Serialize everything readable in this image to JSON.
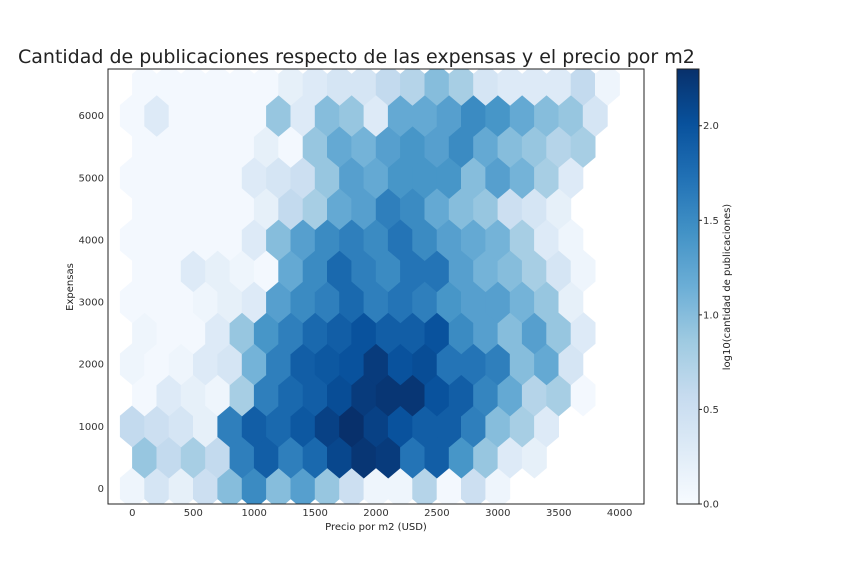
{
  "chart_data": {
    "type": "heatmap",
    "subtype": "hexbin",
    "title": "Cantidad de publicaciones respecto de las expensas y el precio por m2",
    "xlabel": "Precio por m2 (USD)",
    "ylabel": "Expensas",
    "xlim": [
      -200,
      4200
    ],
    "ylim": [
      -250,
      6750
    ],
    "x_ticks": [
      "0",
      "500",
      "1000",
      "1500",
      "2000",
      "2500",
      "3000",
      "3500",
      "4000"
    ],
    "y_ticks": [
      "0",
      "1000",
      "2000",
      "3000",
      "4000",
      "5000",
      "6000"
    ],
    "grid": false,
    "colormap": "Blues",
    "colorbar": {
      "label": "log10(cantidad de publicaciones)",
      "range": [
        0,
        2.3
      ],
      "ticks": [
        "0.0",
        "0.5",
        "1.0",
        "1.5",
        "2.0"
      ]
    },
    "hex_grid": {
      "x_start": 0,
      "x_step": 200,
      "x_cols": 21,
      "y_start": 0,
      "y_step": 500,
      "y_rows": 14,
      "odd_row_x_offset": 100
    },
    "rows": [
      [
        0.1,
        0.4,
        0.2,
        0.5,
        1.0,
        1.5,
        1.0,
        1.3,
        0.9,
        0.5,
        0.1,
        0.1,
        0.7,
        0.05,
        0.5,
        0.1
      ],
      [
        0.9,
        0.6,
        0.8,
        0.6,
        1.6,
        1.9,
        1.6,
        1.8,
        2.1,
        2.25,
        2.2,
        1.7,
        1.9,
        1.4,
        0.9,
        0.3,
        0.2
      ],
      [
        0.6,
        0.5,
        0.4,
        0.2,
        1.6,
        1.9,
        1.8,
        1.95,
        2.15,
        2.3,
        2.15,
        2.0,
        1.9,
        1.9,
        1.6,
        1.0,
        0.8,
        0.3
      ],
      [
        0.05,
        0.3,
        0.2,
        0.1,
        0.8,
        1.6,
        1.8,
        1.9,
        2.05,
        2.2,
        2.25,
        2.25,
        2.0,
        1.9,
        1.55,
        1.2,
        0.7,
        0.8,
        0.05
      ],
      [
        0.1,
        0.05,
        0.1,
        0.3,
        0.4,
        1.1,
        1.6,
        1.9,
        1.95,
        2.0,
        2.2,
        2.0,
        2.05,
        1.7,
        1.7,
        1.6,
        1.0,
        1.2,
        0.4
      ],
      [
        0.1,
        0.05,
        0.05,
        0.3,
        0.9,
        1.4,
        1.6,
        1.8,
        1.9,
        2.0,
        1.9,
        1.9,
        2.0,
        1.5,
        1.3,
        1.0,
        1.3,
        0.9,
        0.3
      ],
      [
        0.05,
        0.05,
        0.05,
        0.1,
        0.2,
        0.3,
        1.3,
        1.5,
        1.6,
        1.8,
        1.6,
        1.7,
        1.6,
        1.4,
        1.3,
        1.3,
        1.1,
        0.9,
        0.2
      ],
      [
        0.05,
        0.05,
        0.3,
        0.2,
        0.1,
        0.05,
        1.2,
        1.5,
        1.8,
        1.6,
        1.5,
        1.7,
        1.7,
        1.3,
        1.1,
        1.0,
        0.8,
        0.4,
        0.1
      ],
      [
        0.05,
        0.05,
        0.05,
        0.05,
        0.05,
        0.3,
        1.0,
        1.3,
        1.5,
        1.6,
        1.5,
        1.7,
        1.5,
        1.3,
        1.2,
        1.1,
        0.8,
        0.3,
        0.1
      ],
      [
        0.05,
        0.05,
        0.05,
        0.05,
        0.05,
        0.2,
        0.6,
        0.8,
        1.2,
        1.3,
        1.6,
        1.5,
        1.2,
        1.0,
        0.9,
        0.5,
        0.4,
        0.2
      ],
      [
        0.05,
        0.05,
        0.05,
        0.05,
        0.05,
        0.3,
        0.4,
        0.5,
        0.9,
        1.3,
        1.2,
        1.4,
        1.4,
        1.4,
        1.0,
        1.3,
        1.1,
        0.8,
        0.3
      ],
      [
        0.05,
        0.05,
        0.05,
        0.05,
        0.05,
        0.2,
        0.05,
        0.9,
        1.2,
        1.1,
        1.3,
        1.4,
        1.3,
        1.5,
        1.2,
        1.0,
        0.9,
        0.7,
        0.8
      ],
      [
        0.05,
        0.3,
        0.05,
        0.05,
        0.05,
        0.05,
        0.9,
        0.3,
        1.0,
        0.9,
        0.3,
        1.2,
        1.2,
        1.3,
        1.5,
        1.4,
        1.2,
        1.0,
        0.9,
        0.4
      ],
      [
        0.05,
        0.05,
        0.05,
        0.05,
        0.05,
        0.05,
        0.2,
        0.3,
        0.4,
        0.4,
        0.6,
        0.7,
        1.0,
        0.8,
        0.4,
        0.3,
        0.3,
        0.3,
        0.6,
        0.1
      ]
    ]
  }
}
